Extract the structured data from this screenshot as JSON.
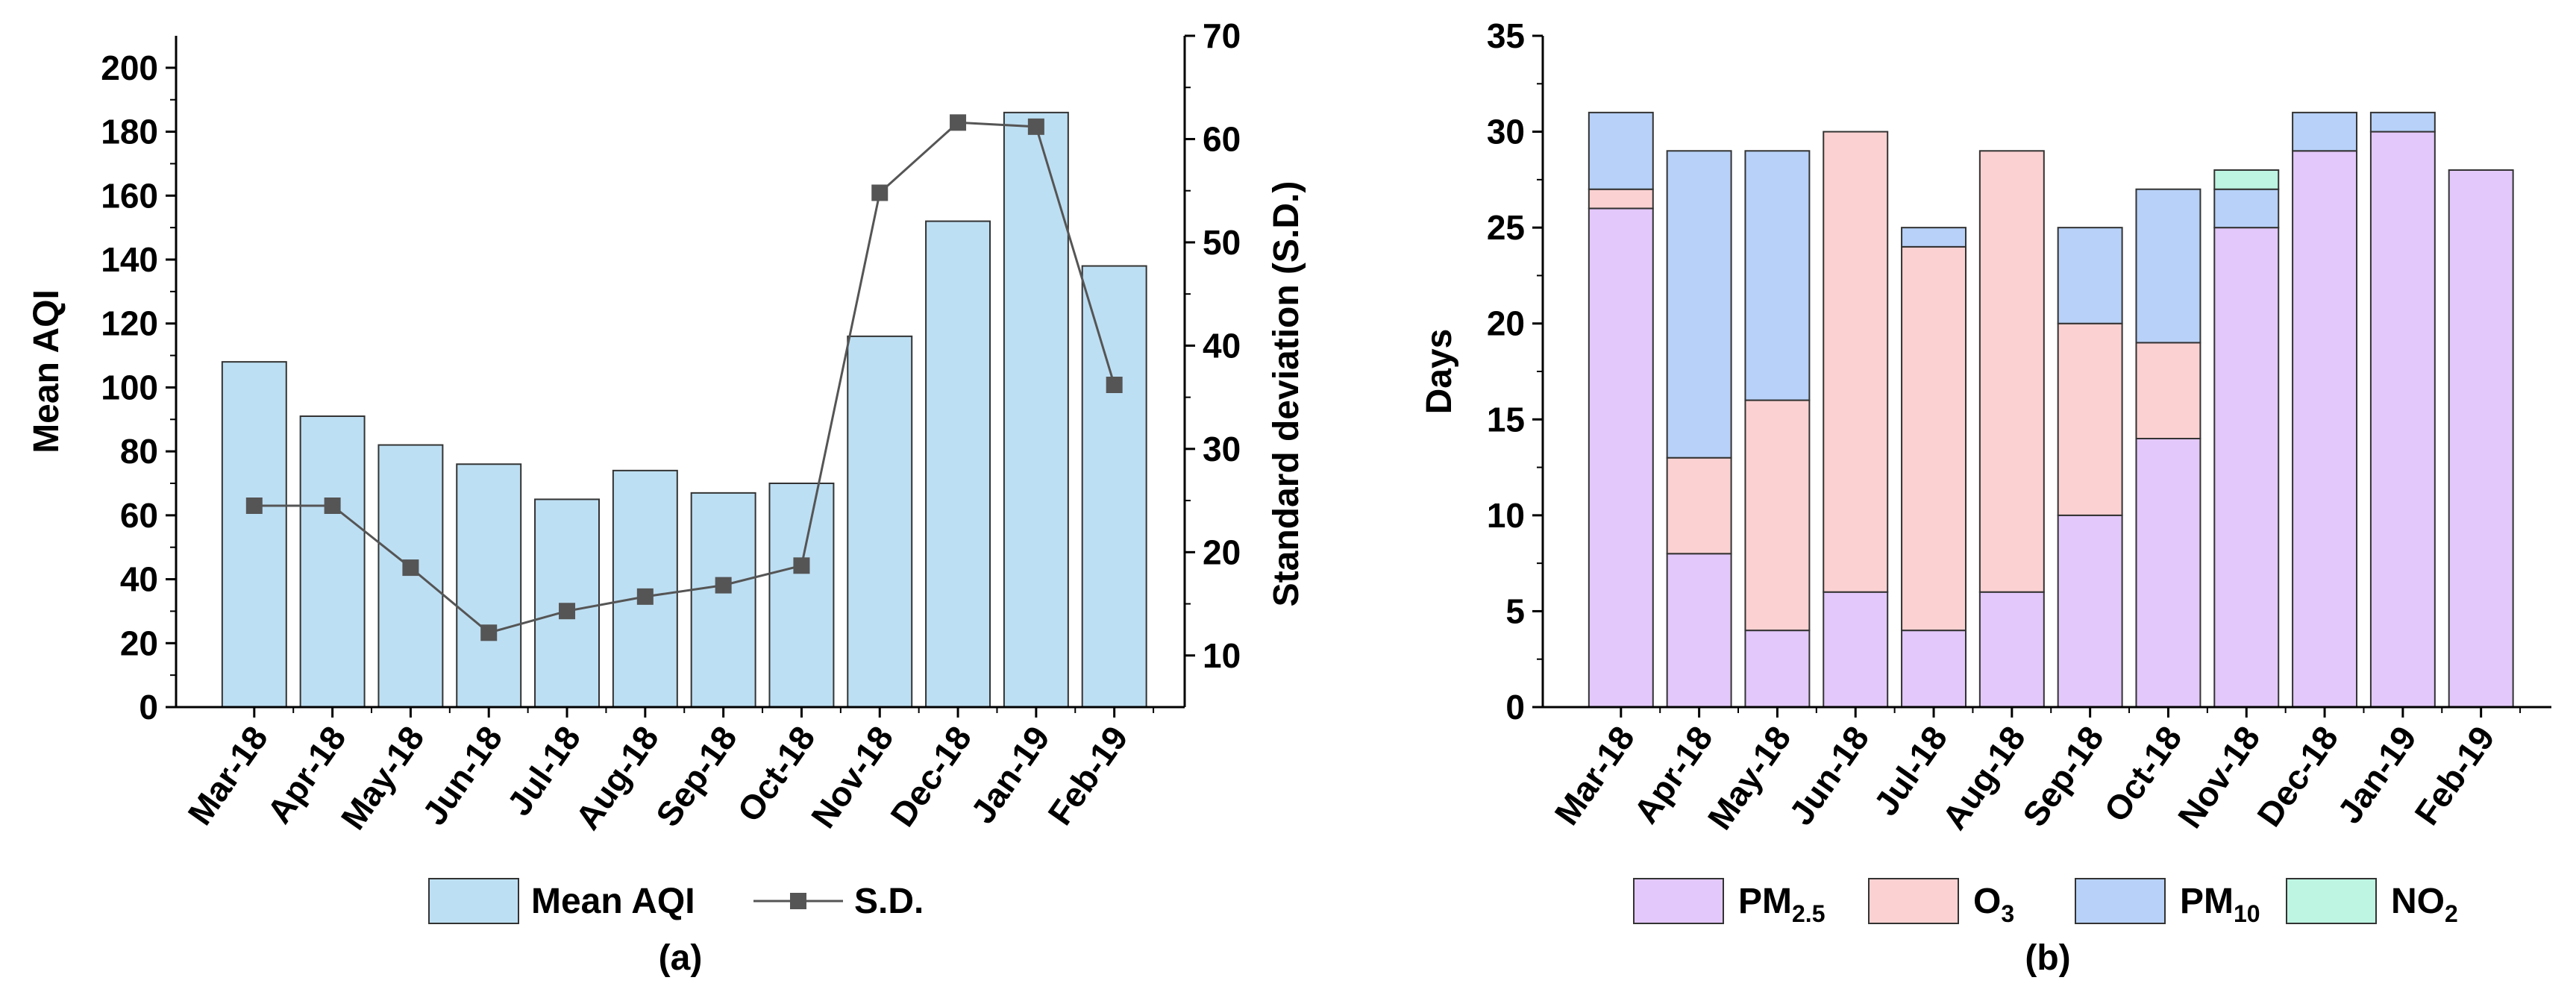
{
  "chart_data": [
    {
      "panel_label": "(a)",
      "type": "bar+line",
      "categories": [
        "Mar-18",
        "Apr-18",
        "May-18",
        "Jun-18",
        "Jul-18",
        "Aug-18",
        "Sep-18",
        "Oct-18",
        "Nov-18",
        "Dec-18",
        "Jan-19",
        "Feb-19"
      ],
      "bar_series": {
        "name": "Mean AQI",
        "values": [
          108,
          91,
          82,
          76,
          65,
          74,
          67,
          70,
          116,
          152,
          186,
          138
        ],
        "color": "#bddff3"
      },
      "line_series": {
        "name": "S.D.",
        "values": [
          24.5,
          24.5,
          18.5,
          12.2,
          14.3,
          15.7,
          16.8,
          18.7,
          54.8,
          61.6,
          61.2,
          36.2
        ],
        "color": "#555555"
      },
      "ylabel": "Mean AQI",
      "ylabel_right": "Standard deviation (S.D.)",
      "ylim": [
        0,
        210
      ],
      "yticks": [
        0,
        20,
        40,
        60,
        80,
        100,
        120,
        140,
        160,
        180,
        200
      ],
      "ylim_right": [
        5,
        70
      ],
      "yticks_right": [
        10,
        20,
        30,
        40,
        50,
        60,
        70
      ],
      "legend_position": "bottom"
    },
    {
      "panel_label": "(b)",
      "type": "bar",
      "stacked": true,
      "categories": [
        "Mar-18",
        "Apr-18",
        "May-18",
        "Jun-18",
        "Jul-18",
        "Aug-18",
        "Sep-18",
        "Oct-18",
        "Nov-18",
        "Dec-18",
        "Jan-19",
        "Feb-19"
      ],
      "series": [
        {
          "name": "PM",
          "subscript": "2.5",
          "color": "#e3c8fb",
          "values": [
            26,
            8,
            4,
            6,
            4,
            6,
            10,
            14,
            25,
            29,
            30,
            28
          ]
        },
        {
          "name": "O",
          "subscript": "3",
          "color": "#fcd1d1",
          "values": [
            1,
            5,
            12,
            24,
            20,
            23,
            10,
            5,
            0,
            0,
            0,
            0
          ]
        },
        {
          "name": "PM",
          "subscript": "10",
          "color": "#b7d1f8",
          "values": [
            4,
            16,
            13,
            0,
            1,
            0,
            5,
            8,
            2,
            2,
            1,
            0
          ]
        },
        {
          "name": "NO",
          "subscript": "2",
          "color": "#bdf5e2",
          "values": [
            0,
            0,
            0,
            0,
            0,
            0,
            0,
            0,
            1,
            0,
            0,
            0
          ]
        }
      ],
      "ylabel": "Days",
      "ylim": [
        0,
        35
      ],
      "yticks": [
        0,
        5,
        10,
        15,
        20,
        25,
        30,
        35
      ],
      "legend_position": "bottom"
    }
  ]
}
